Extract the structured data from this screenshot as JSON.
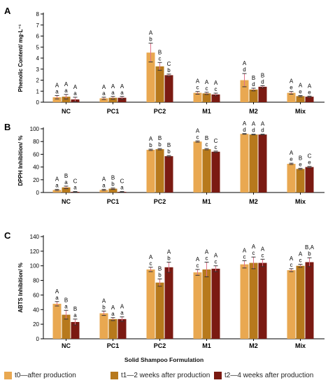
{
  "colors": {
    "t0": "#e9a851",
    "t1": "#b7791c",
    "t2": "#7b1a12",
    "error": "#e0748c",
    "axis": "#000000"
  },
  "x_axis_title": "Solid Shampoo Formulation",
  "legend": [
    {
      "label": "t0—after production",
      "color": "#e9a851"
    },
    {
      "label": "t1—2 weeks after production",
      "color": "#b7791c"
    },
    {
      "label": "t2—4 weeks after production",
      "color": "#7b1a12"
    }
  ],
  "chart_data": [
    {
      "panel_label": "A",
      "type": "bar",
      "ylabel": "Phenolic Content/ mg·L⁻¹",
      "ylim": [
        0,
        8
      ],
      "yticks": [
        "0",
        "1",
        "2",
        "3",
        "4",
        "5",
        "6",
        "7",
        "8"
      ],
      "categories": [
        "NC",
        "PC1",
        "PC2",
        "M1",
        "M2",
        "Mix"
      ],
      "series": [
        {
          "values": [
            0.45,
            0.35,
            4.5,
            0.85,
            2.0,
            0.85
          ],
          "errors": [
            0.15,
            0.1,
            0.85,
            0.12,
            0.6,
            0.12
          ],
          "labels": [
            [
              "A",
              "a"
            ],
            [
              "A",
              "a"
            ],
            [
              "A",
              "b"
            ],
            [
              "A",
              "c"
            ],
            [
              "A",
              "d"
            ],
            [
              "A",
              "e"
            ]
          ]
        },
        {
          "values": [
            0.5,
            0.4,
            3.25,
            0.8,
            1.15,
            0.55
          ],
          "errors": [
            0.2,
            0.12,
            0.35,
            0.1,
            0.12,
            0.05
          ],
          "labels": [
            [
              "A",
              "a"
            ],
            [
              "A",
              "a"
            ],
            [
              "B",
              "c"
            ],
            [
              "A",
              "c"
            ],
            [
              "B",
              "d"
            ],
            [
              "A",
              "e"
            ]
          ]
        },
        {
          "values": [
            0.25,
            0.4,
            2.45,
            0.7,
            1.4,
            0.5
          ],
          "errors": [
            0.2,
            0.12,
            0.1,
            0.12,
            0.1,
            0.05
          ],
          "labels": [
            [
              "A",
              "a"
            ],
            [
              "A",
              "a"
            ],
            [
              "C",
              "b"
            ],
            [
              "A",
              "c"
            ],
            [
              "B",
              "d"
            ],
            [
              "A",
              "e"
            ]
          ]
        }
      ]
    },
    {
      "panel_label": "B",
      "type": "bar",
      "ylabel": "DPPH Inhibition/ %",
      "ylim": [
        0,
        100
      ],
      "yticks": [
        "0",
        "20",
        "40",
        "60",
        "80",
        "100"
      ],
      "categories": [
        "NC",
        "PC1",
        "PC2",
        "M1",
        "M2",
        "Mix"
      ],
      "series": [
        {
          "values": [
            4,
            4,
            67,
            80,
            92,
            45
          ],
          "errors": [
            1,
            1,
            1,
            1,
            0.5,
            1
          ],
          "labels": [
            [
              "A",
              "a"
            ],
            [
              "A",
              "a"
            ],
            [
              "A",
              "b"
            ],
            [
              "A",
              "c"
            ],
            [
              "A",
              "d"
            ],
            [
              "A",
              "e"
            ]
          ]
        },
        {
          "values": [
            8,
            6,
            68,
            68,
            91,
            37
          ],
          "errors": [
            2,
            1,
            1,
            1,
            0.5,
            1
          ],
          "labels": [
            [
              "B",
              "a"
            ],
            [
              "B",
              "b"
            ],
            [
              "B",
              "b"
            ],
            [
              "B",
              "c"
            ],
            [
              "A",
              "d"
            ],
            [
              "B",
              "e"
            ]
          ]
        },
        {
          "values": [
            1,
            1,
            57,
            64,
            91,
            40
          ],
          "errors": [
            0.5,
            0.5,
            1,
            1,
            0.5,
            1
          ],
          "labels": [
            [
              "C",
              "a"
            ],
            [
              "C",
              "a"
            ],
            [
              "B",
              "b"
            ],
            [
              "C",
              "c"
            ],
            [
              "A",
              "d"
            ],
            [
              "C",
              "e"
            ]
          ]
        }
      ]
    },
    {
      "panel_label": "C",
      "type": "bar",
      "ylabel": "ABTS Inhibition/ %",
      "ylim": [
        0,
        140
      ],
      "yticks": [
        "0",
        "20",
        "40",
        "60",
        "80",
        "100",
        "120",
        "140"
      ],
      "categories": [
        "NC",
        "PC1",
        "PC2",
        "M1",
        "M2",
        "Mix"
      ],
      "series": [
        {
          "values": [
            48,
            35,
            95,
            91,
            102,
            94
          ],
          "errors": [
            3,
            3,
            3,
            4,
            5,
            2
          ],
          "labels": [
            [
              "A",
              "a"
            ],
            [
              "A",
              "b"
            ],
            [
              "A",
              "c"
            ],
            [
              "A",
              "c"
            ],
            [
              "A",
              "c"
            ],
            [
              "A",
              "c"
            ]
          ]
        },
        {
          "values": [
            33,
            27,
            77,
            95,
            104,
            100
          ],
          "errors": [
            6,
            2,
            5,
            10,
            8,
            2
          ],
          "labels": [
            [
              "B",
              "a"
            ],
            [
              "A",
              "a"
            ],
            [
              "B",
              "b"
            ],
            [
              "A",
              "c"
            ],
            [
              "A",
              "c"
            ],
            [
              "A",
              "c"
            ]
          ]
        },
        {
          "values": [
            23,
            27,
            98,
            96,
            104,
            105
          ],
          "errors": [
            4,
            3,
            7,
            4,
            5,
            6
          ],
          "labels": [
            [
              "B",
              "a"
            ],
            [
              "A",
              "a"
            ],
            [
              "A",
              "b"
            ],
            [
              "A",
              "c"
            ],
            [
              "A",
              "c"
            ],
            [
              "B,A",
              "b"
            ]
          ]
        }
      ]
    }
  ]
}
